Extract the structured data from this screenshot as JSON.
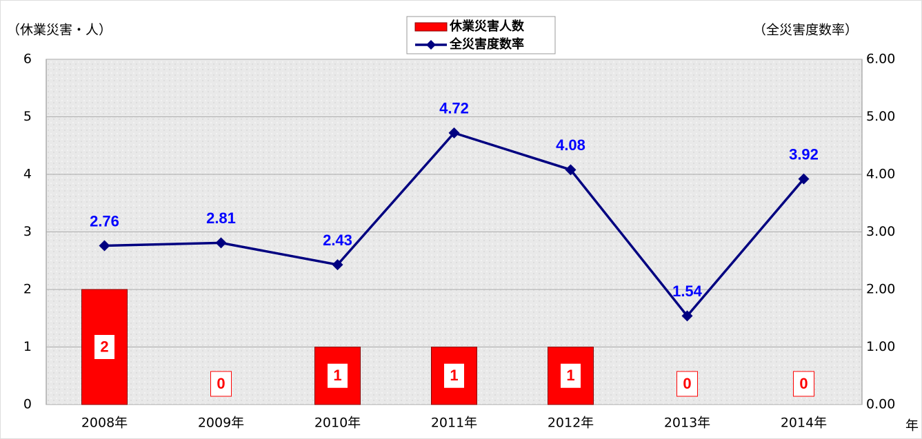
{
  "chart_data": {
    "type": "combo",
    "categories": [
      "2008年",
      "2009年",
      "2010年",
      "2011年",
      "2012年",
      "2013年",
      "2014年"
    ],
    "series": [
      {
        "name": "休業災害人数",
        "type": "bar",
        "color": "#ff0000",
        "values": [
          2,
          0,
          1,
          1,
          1,
          0,
          0
        ]
      },
      {
        "name": "全災害度数率",
        "type": "line",
        "axis": "y2",
        "color": "#000080",
        "values": [
          2.76,
          2.81,
          2.43,
          4.72,
          4.08,
          1.54,
          3.92
        ]
      }
    ],
    "ylabel": "（休業災害・人）",
    "y2label": "（全災害度数率）",
    "xlabel": "年",
    "ylim": [
      0,
      6
    ],
    "yticks": [
      0,
      1,
      2,
      3,
      4,
      5,
      6
    ],
    "y2lim": [
      0,
      6
    ],
    "y2ticks": [
      {
        "value": 0,
        "label": "0.00"
      },
      {
        "value": 1,
        "label": "1.00"
      },
      {
        "value": 2,
        "label": "2.00"
      },
      {
        "value": 3,
        "label": "3.00"
      },
      {
        "value": 4,
        "label": "4.00"
      },
      {
        "value": 5,
        "label": "5.00"
      },
      {
        "value": 6,
        "label": "6.00"
      }
    ],
    "grid": true,
    "legend": "top"
  }
}
